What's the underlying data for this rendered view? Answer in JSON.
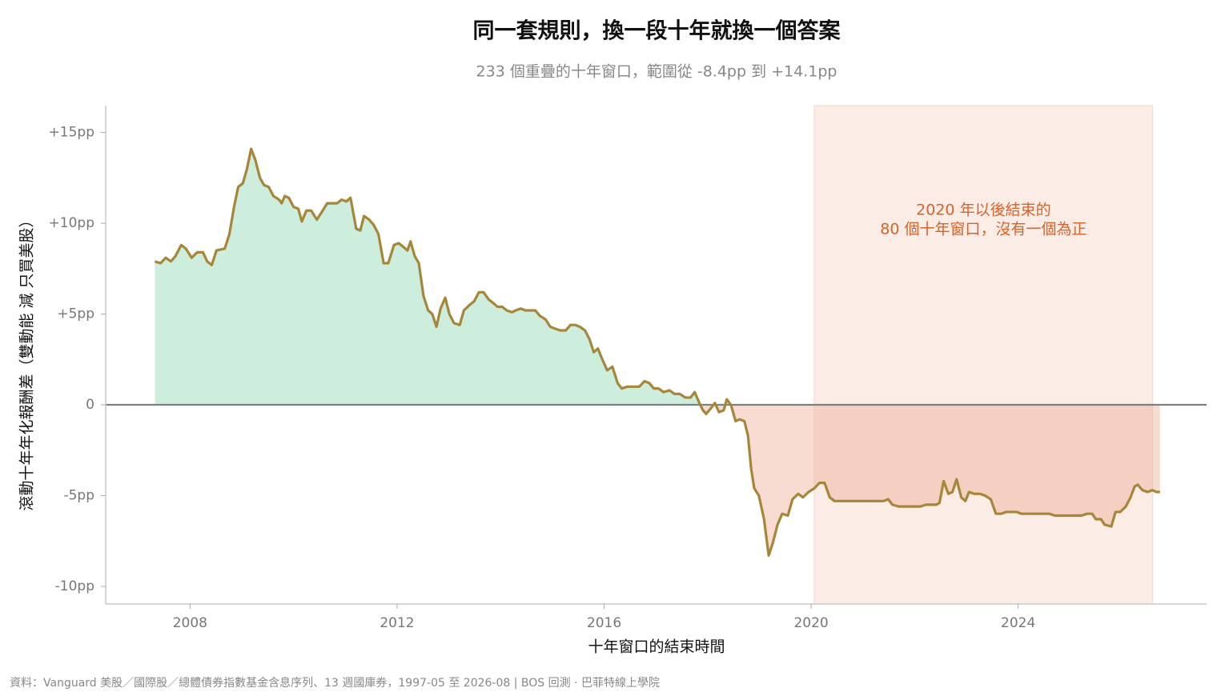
{
  "chart_data": {
    "type": "area-line",
    "title": "同一套規則，換一段十年就換一個答案",
    "subtitle": "233 個重疊的十年窗口，範圍從 -8.4pp 到 +14.1pp",
    "x_label": "十年窗口的結束時間",
    "y_label": "滾動十年年化報酬差（雙動能 減 只買美股）",
    "source": "資料：Vanguard 美股／國際股／總體債券指數基金含息序列、13 週國庫券，1997-05 至 2026-08 | BOS 回測 ·  巴菲特線上學院",
    "annotation": [
      "2020 年以後結束的",
      "80 個十年窗口，沒有一個為正"
    ],
    "annotation_color": "#d9622b",
    "highlight": {
      "xlim": [
        2020.06,
        2026.6
      ],
      "color": "#fbece5",
      "edge": "#f6d6c8"
    },
    "color": "#a5863a",
    "positive_color": "#cdeddd",
    "negative_color": "#eea88f",
    "baseline": 0,
    "xlim": [
      2006.37,
      2027.64
    ],
    "ylim": [
      -10.97,
      16.48
    ],
    "xticks": [
      2008,
      2012,
      2016,
      2020,
      2024
    ],
    "yticks": [
      {
        "value": -10,
        "label": "-10pp"
      },
      {
        "value": -5,
        "label": "-5pp"
      },
      0,
      {
        "value": 5,
        "label": "+5pp"
      },
      {
        "value": 10,
        "label": "+10pp"
      },
      {
        "value": 15,
        "label": "+15pp"
      }
    ],
    "x": [
      2007.32,
      2007.43,
      2007.53,
      2007.63,
      2007.72,
      2007.83,
      2007.92,
      2008.03,
      2008.14,
      2008.25,
      2008.33,
      2008.42,
      2008.51,
      2008.67,
      2008.76,
      2008.85,
      2008.93,
      2009.02,
      2009.1,
      2009.18,
      2009.26,
      2009.35,
      2009.43,
      2009.52,
      2009.61,
      2009.72,
      2009.77,
      2009.83,
      2009.91,
      2010.0,
      2010.09,
      2010.16,
      2010.25,
      2010.34,
      2010.45,
      2010.54,
      2010.65,
      2010.74,
      2010.84,
      2010.93,
      2011.02,
      2011.1,
      2011.21,
      2011.29,
      2011.36,
      2011.46,
      2011.55,
      2011.64,
      2011.74,
      2011.83,
      2011.94,
      2012.03,
      2012.12,
      2012.2,
      2012.26,
      2012.34,
      2012.42,
      2012.51,
      2012.6,
      2012.68,
      2012.76,
      2012.84,
      2012.93,
      2013.01,
      2013.1,
      2013.21,
      2013.29,
      2013.4,
      2013.49,
      2013.58,
      2013.67,
      2013.77,
      2013.86,
      2013.94,
      2014.03,
      2014.12,
      2014.22,
      2014.29,
      2014.39,
      2014.48,
      2014.57,
      2014.67,
      2014.76,
      2014.87,
      2014.96,
      2015.05,
      2015.15,
      2015.26,
      2015.35,
      2015.44,
      2015.53,
      2015.63,
      2015.72,
      2015.8,
      2015.88,
      2015.95,
      2016.06,
      2016.16,
      2016.26,
      2016.34,
      2016.45,
      2016.57,
      2016.68,
      2016.78,
      2016.87,
      2016.96,
      2017.05,
      2017.15,
      2017.26,
      2017.36,
      2017.46,
      2017.57,
      2017.67,
      2017.75,
      2017.84,
      2017.91,
      2017.97,
      2018.06,
      2018.14,
      2018.22,
      2018.31,
      2018.37,
      2018.45,
      2018.54,
      2018.62,
      2018.71,
      2018.78,
      2018.84,
      2018.9,
      2018.99,
      2019.09,
      2019.18,
      2019.26,
      2019.35,
      2019.44,
      2019.55,
      2019.64,
      2019.75,
      2019.84,
      2019.95,
      2020.06,
      2020.16,
      2020.26,
      2020.36,
      2020.45,
      2020.54,
      2020.65,
      2020.74,
      2020.85,
      2020.95,
      2021.07,
      2021.19,
      2021.3,
      2021.4,
      2021.49,
      2021.57,
      2021.69,
      2021.8,
      2021.91,
      2022.02,
      2022.11,
      2022.22,
      2022.31,
      2022.42,
      2022.48,
      2022.56,
      2022.65,
      2022.73,
      2022.81,
      2022.9,
      2022.98,
      2023.05,
      2023.15,
      2023.26,
      2023.36,
      2023.47,
      2023.57,
      2023.67,
      2023.77,
      2023.86,
      2023.97,
      2024.06,
      2024.17,
      2024.28,
      2024.39,
      2024.5,
      2024.6,
      2024.71,
      2024.82,
      2024.93,
      2025.02,
      2025.12,
      2025.22,
      2025.33,
      2025.43,
      2025.5,
      2025.6,
      2025.67,
      2025.8,
      2025.88,
      2025.97,
      2026.08,
      2026.17,
      2026.25,
      2026.31,
      2026.4,
      2026.5,
      2026.59,
      2026.67,
      2026.74
    ],
    "values": [
      7.9,
      7.8,
      8.1,
      7.9,
      8.2,
      8.8,
      8.6,
      8.1,
      8.4,
      8.4,
      7.9,
      7.7,
      8.5,
      8.6,
      9.4,
      10.9,
      12.0,
      12.2,
      13.0,
      14.1,
      13.5,
      12.5,
      12.1,
      12.0,
      11.5,
      11.3,
      11.1,
      11.5,
      11.4,
      10.9,
      10.8,
      10.1,
      10.7,
      10.7,
      10.2,
      10.6,
      11.1,
      11.1,
      11.1,
      11.3,
      11.2,
      11.4,
      9.7,
      9.6,
      10.4,
      10.2,
      9.9,
      9.4,
      7.8,
      7.8,
      8.8,
      8.9,
      8.7,
      8.5,
      9.0,
      8.2,
      7.8,
      6.0,
      5.2,
      5.0,
      4.3,
      5.3,
      5.9,
      5.0,
      4.5,
      4.4,
      5.2,
      5.5,
      5.7,
      6.2,
      6.2,
      5.8,
      5.6,
      5.4,
      5.4,
      5.2,
      5.1,
      5.2,
      5.3,
      5.2,
      5.2,
      5.2,
      4.9,
      4.7,
      4.3,
      4.2,
      4.1,
      4.1,
      4.4,
      4.4,
      4.3,
      4.1,
      3.6,
      2.9,
      3.1,
      2.6,
      1.9,
      2.1,
      1.2,
      0.9,
      1.0,
      1.0,
      1.0,
      1.3,
      1.2,
      0.9,
      0.9,
      0.7,
      0.8,
      0.6,
      0.6,
      0.4,
      0.4,
      0.7,
      0.1,
      -0.3,
      -0.5,
      -0.2,
      0.1,
      -0.4,
      -0.3,
      0.3,
      0.0,
      -0.9,
      -0.8,
      -0.9,
      -1.7,
      -3.5,
      -4.6,
      -5.0,
      -6.3,
      -8.3,
      -7.6,
      -6.6,
      -6.0,
      -6.1,
      -5.2,
      -4.9,
      -5.1,
      -4.8,
      -4.6,
      -4.3,
      -4.3,
      -5.1,
      -5.3,
      -5.3,
      -5.3,
      -5.3,
      -5.3,
      -5.3,
      -5.3,
      -5.3,
      -5.3,
      -5.3,
      -5.2,
      -5.5,
      -5.6,
      -5.6,
      -5.6,
      -5.6,
      -5.6,
      -5.5,
      -5.5,
      -5.5,
      -5.4,
      -4.2,
      -4.9,
      -4.8,
      -4.1,
      -5.1,
      -5.3,
      -4.8,
      -4.9,
      -4.9,
      -5.0,
      -5.2,
      -6.0,
      -6.0,
      -5.9,
      -5.9,
      -5.9,
      -6.0,
      -6.0,
      -6.0,
      -6.0,
      -6.0,
      -6.0,
      -6.1,
      -6.1,
      -6.1,
      -6.1,
      -6.1,
      -6.1,
      -6.0,
      -6.0,
      -6.3,
      -6.3,
      -6.6,
      -6.7,
      -5.9,
      -5.9,
      -5.6,
      -5.1,
      -4.5,
      -4.4,
      -4.7,
      -4.8,
      -4.7,
      -4.8,
      -4.8
    ]
  }
}
